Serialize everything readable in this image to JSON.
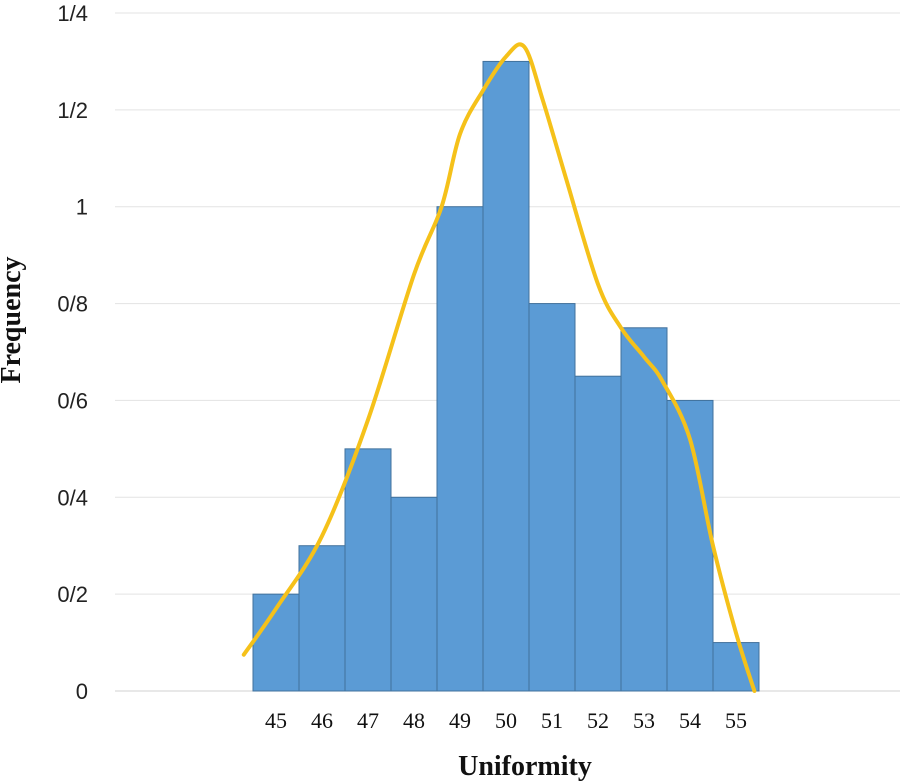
{
  "chart_data": {
    "type": "bar",
    "title": "",
    "xlabel": "Uniformity",
    "ylabel": "Frequency",
    "categories": [
      "45",
      "46",
      "47",
      "48",
      "49",
      "50",
      "51",
      "52",
      "53",
      "54",
      "55"
    ],
    "values": [
      0.2,
      0.3,
      0.5,
      0.4,
      1.0,
      1.3,
      0.8,
      0.65,
      0.75,
      0.6,
      0.1
    ],
    "ylim": [
      0,
      1.4
    ],
    "yticks": [
      0,
      0.2,
      0.4,
      0.6,
      0.8,
      1.0,
      1.2,
      1.4
    ],
    "ytick_labels": [
      "0",
      "0/2",
      "0/4",
      "0/6",
      "0/8",
      "1",
      "1/2",
      "1/4"
    ],
    "grid": true,
    "bar_color": "#5b9bd5",
    "bar_edge_color": "#41719c",
    "curve": {
      "type": "line",
      "color": "#f5c11a",
      "x": [
        44.3,
        45.0,
        46.0,
        47.0,
        48.0,
        48.6,
        49.0,
        49.5,
        50.0,
        50.4,
        50.8,
        51.3,
        52.0,
        52.5,
        53.0,
        53.4,
        54.0,
        54.5,
        55.0,
        55.4
      ],
      "y": [
        0.075,
        0.17,
        0.32,
        0.56,
        0.86,
        1.0,
        1.15,
        1.24,
        1.31,
        1.33,
        1.22,
        1.06,
        0.84,
        0.75,
        0.69,
        0.64,
        0.52,
        0.3,
        0.12,
        0.0
      ]
    }
  }
}
